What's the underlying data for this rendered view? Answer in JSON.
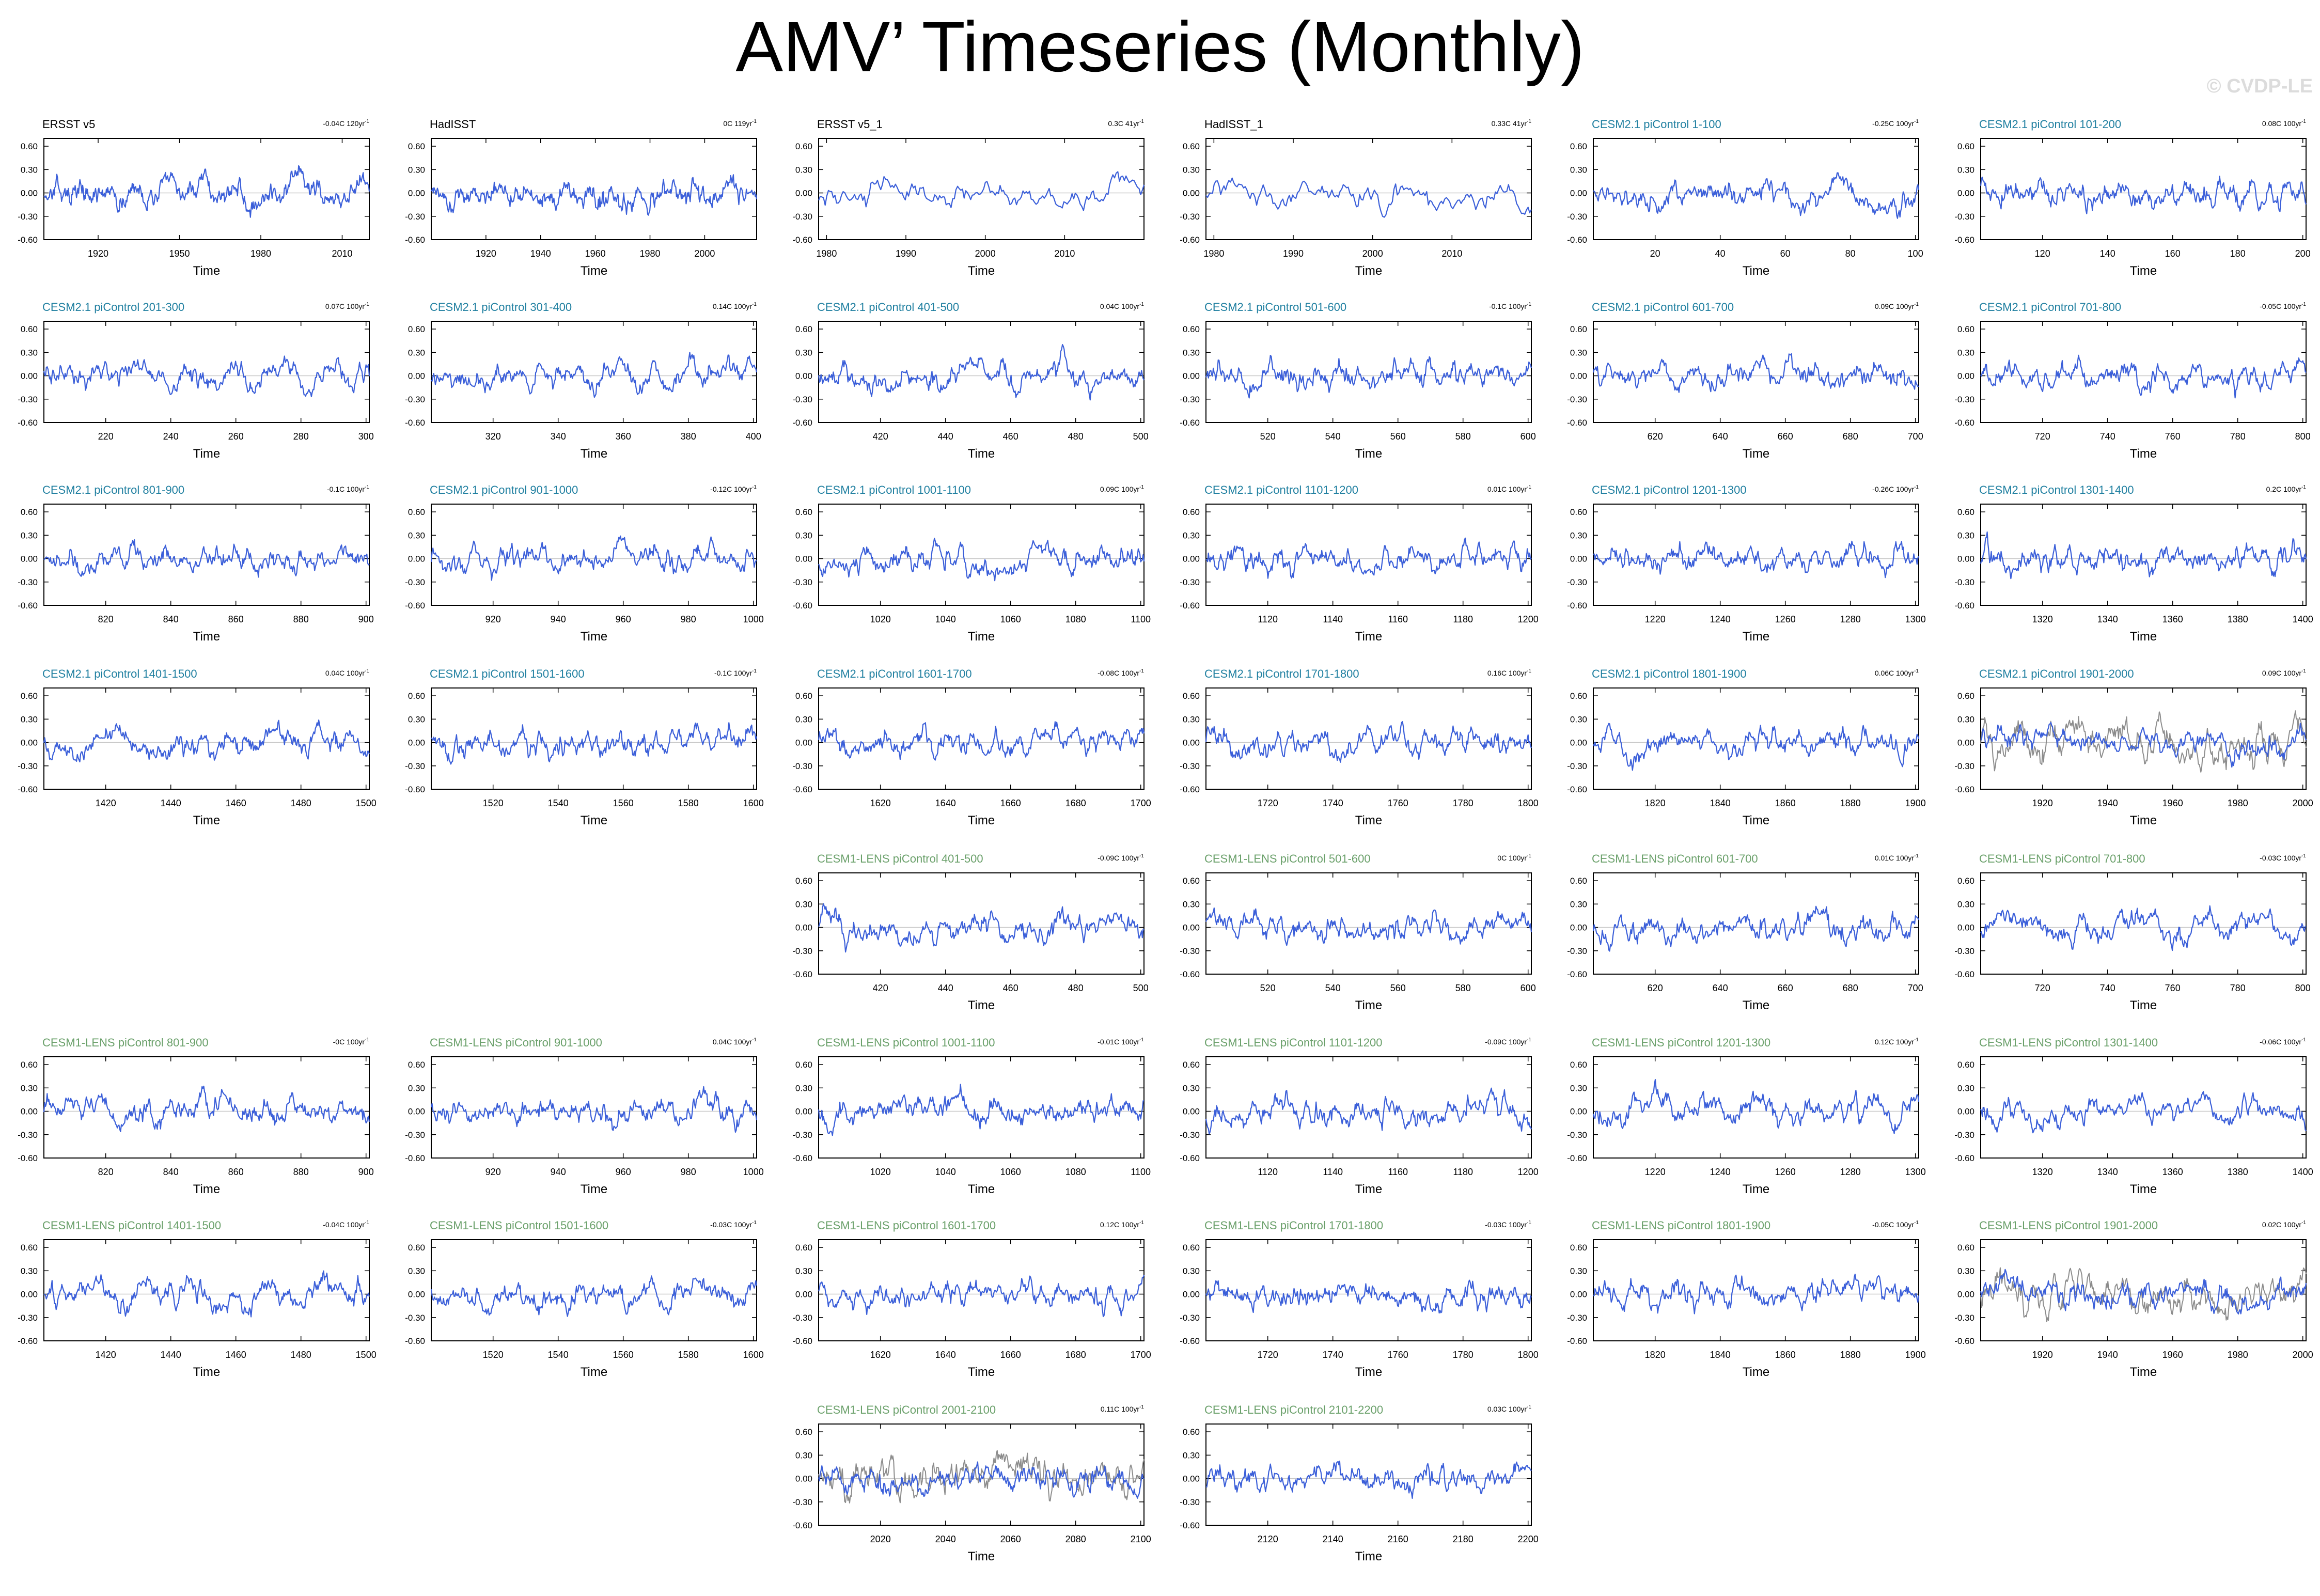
{
  "title": "AMV’ Timeseries (Monthly)",
  "credit": "© CVDP-LE",
  "colors": {
    "obs_title": "#000000",
    "cesm2_title": "#1f7fa0",
    "cesm1_title": "#6aa06a",
    "series": "#3b5fd9",
    "comparison": "#8c8c8c"
  },
  "chart_data": [
    {
      "type": "line",
      "title": "ERSST v5",
      "trend": "-0.04C 120yr",
      "xlabel": "Time",
      "xlim": [
        1900,
        2020
      ],
      "ylim": [
        -0.6,
        0.7
      ],
      "xticks": [
        1920,
        1950,
        1980,
        2010
      ],
      "yticks": [
        "0.60",
        "0.30",
        "0.00",
        "-0.30",
        "-0.60"
      ]
    },
    {
      "type": "line",
      "title": "HadISST",
      "trend": "0C 119yr",
      "xlabel": "Time",
      "xlim": [
        1900,
        2019
      ],
      "ylim": [
        -0.6,
        0.7
      ],
      "xticks": [
        1920,
        1940,
        1960,
        1980,
        2000
      ],
      "yticks": [
        "0.60",
        "0.30",
        "0.00",
        "-0.30",
        "-0.60"
      ]
    },
    {
      "type": "line",
      "title": "ERSST v5_1",
      "trend": "0.3C 41yr",
      "xlabel": "Time",
      "xlim": [
        1979,
        2020
      ],
      "ylim": [
        -0.6,
        0.7
      ],
      "xticks": [
        1980,
        1990,
        2000,
        2010
      ],
      "yticks": [
        "0.60",
        "0.30",
        "0.00",
        "-0.30",
        "-0.60"
      ]
    },
    {
      "type": "line",
      "title": "HadISST_1",
      "trend": "0.33C 41yr",
      "xlabel": "Time",
      "xlim": [
        1979,
        2020
      ],
      "ylim": [
        -0.6,
        0.7
      ],
      "xticks": [
        1980,
        1990,
        2000,
        2010
      ],
      "yticks": [
        "0.60",
        "0.30",
        "0.00",
        "-0.30",
        "-0.60"
      ]
    },
    {
      "type": "line",
      "title": "CESM2.1 piControl 1-100",
      "trend": "-0.25C 100yr",
      "xlabel": "Time",
      "xlim": [
        1,
        101
      ],
      "ylim": [
        -0.6,
        0.7
      ],
      "xticks": [
        20,
        40,
        60,
        80,
        100
      ],
      "yticks": [
        "0.60",
        "0.30",
        "0.00",
        "-0.30",
        "-0.60"
      ]
    },
    {
      "type": "line",
      "title": "CESM2.1 piControl 101-200",
      "trend": "0.08C 100yr",
      "xlabel": "Time",
      "xlim": [
        101,
        201
      ],
      "ylim": [
        -0.6,
        0.7
      ],
      "xticks": [
        120,
        140,
        160,
        180,
        200
      ],
      "yticks": [
        "0.60",
        "0.30",
        "0.00",
        "-0.30",
        "-0.60"
      ]
    },
    {
      "type": "line",
      "title": "CESM2.1 piControl 201-300",
      "trend": "0.07C 100yr",
      "xlabel": "Time",
      "xlim": [
        201,
        301
      ],
      "ylim": [
        -0.6,
        0.7
      ],
      "xticks": [
        220,
        240,
        260,
        280,
        300
      ],
      "yticks": [
        "0.60",
        "0.30",
        "0.00",
        "-0.30",
        "-0.60"
      ]
    },
    {
      "type": "line",
      "title": "CESM2.1 piControl 301-400",
      "trend": "0.14C 100yr",
      "xlabel": "Time",
      "xlim": [
        301,
        401
      ],
      "ylim": [
        -0.6,
        0.7
      ],
      "xticks": [
        320,
        340,
        360,
        380,
        400
      ],
      "yticks": [
        "0.60",
        "0.30",
        "0.00",
        "-0.30",
        "-0.60"
      ]
    },
    {
      "type": "line",
      "title": "CESM2.1 piControl 401-500",
      "trend": "0.04C 100yr",
      "xlabel": "Time",
      "xlim": [
        401,
        501
      ],
      "ylim": [
        -0.6,
        0.7
      ],
      "xticks": [
        420,
        440,
        460,
        480,
        500
      ],
      "yticks": [
        "0.60",
        "0.30",
        "0.00",
        "-0.30",
        "-0.60"
      ]
    },
    {
      "type": "line",
      "title": "CESM2.1 piControl 501-600",
      "trend": "-0.1C 100yr",
      "xlabel": "Time",
      "xlim": [
        501,
        601
      ],
      "ylim": [
        -0.6,
        0.7
      ],
      "xticks": [
        520,
        540,
        560,
        580,
        600
      ],
      "yticks": [
        "0.60",
        "0.30",
        "0.00",
        "-0.30",
        "-0.60"
      ]
    },
    {
      "type": "line",
      "title": "CESM2.1 piControl 601-700",
      "trend": "0.09C 100yr",
      "xlabel": "Time",
      "xlim": [
        601,
        701
      ],
      "ylim": [
        -0.6,
        0.7
      ],
      "xticks": [
        620,
        640,
        660,
        680,
        700
      ],
      "yticks": [
        "0.60",
        "0.30",
        "0.00",
        "-0.30",
        "-0.60"
      ]
    },
    {
      "type": "line",
      "title": "CESM2.1 piControl 701-800",
      "trend": "-0.05C 100yr",
      "xlabel": "Time",
      "xlim": [
        701,
        801
      ],
      "ylim": [
        -0.6,
        0.7
      ],
      "xticks": [
        720,
        740,
        760,
        780,
        800
      ],
      "yticks": [
        "0.60",
        "0.30",
        "0.00",
        "-0.30",
        "-0.60"
      ]
    },
    {
      "type": "line",
      "title": "CESM2.1 piControl 801-900",
      "trend": "-0.1C 100yr",
      "xlabel": "Time",
      "xlim": [
        801,
        901
      ],
      "ylim": [
        -0.6,
        0.7
      ],
      "xticks": [
        820,
        840,
        860,
        880,
        900
      ],
      "yticks": [
        "0.60",
        "0.30",
        "0.00",
        "-0.30",
        "-0.60"
      ]
    },
    {
      "type": "line",
      "title": "CESM2.1 piControl 901-1000",
      "trend": "-0.12C 100yr",
      "xlabel": "Time",
      "xlim": [
        901,
        1001
      ],
      "ylim": [
        -0.6,
        0.7
      ],
      "xticks": [
        920,
        940,
        960,
        980,
        1000
      ],
      "yticks": [
        "0.60",
        "0.30",
        "0.00",
        "-0.30",
        "-0.60"
      ]
    },
    {
      "type": "line",
      "title": "CESM2.1 piControl 1001-1100",
      "trend": "0.09C 100yr",
      "xlabel": "Time",
      "xlim": [
        1001,
        1101
      ],
      "ylim": [
        -0.6,
        0.7
      ],
      "xticks": [
        1020,
        1040,
        1060,
        1080,
        1100
      ],
      "yticks": [
        "0.60",
        "0.30",
        "0.00",
        "-0.30",
        "-0.60"
      ]
    },
    {
      "type": "line",
      "title": "CESM2.1 piControl 1101-1200",
      "trend": "0.01C 100yr",
      "xlabel": "Time",
      "xlim": [
        1101,
        1201
      ],
      "ylim": [
        -0.6,
        0.7
      ],
      "xticks": [
        1120,
        1140,
        1160,
        1180,
        1200
      ],
      "yticks": [
        "0.60",
        "0.30",
        "0.00",
        "-0.30",
        "-0.60"
      ]
    },
    {
      "type": "line",
      "title": "CESM2.1 piControl 1201-1300",
      "trend": "-0.26C 100yr",
      "xlabel": "Time",
      "xlim": [
        1201,
        1301
      ],
      "ylim": [
        -0.6,
        0.7
      ],
      "xticks": [
        1220,
        1240,
        1260,
        1280,
        1300
      ],
      "yticks": [
        "0.60",
        "0.30",
        "0.00",
        "-0.30",
        "-0.60"
      ]
    },
    {
      "type": "line",
      "title": "CESM2.1 piControl 1301-1400",
      "trend": "0.2C 100yr",
      "xlabel": "Time",
      "xlim": [
        1301,
        1401
      ],
      "ylim": [
        -0.6,
        0.7
      ],
      "xticks": [
        1320,
        1340,
        1360,
        1380,
        1400
      ],
      "yticks": [
        "0.60",
        "0.30",
        "0.00",
        "-0.30",
        "-0.60"
      ]
    },
    {
      "type": "line",
      "title": "CESM2.1 piControl 1401-1500",
      "trend": "0.04C 100yr",
      "xlabel": "Time",
      "xlim": [
        1401,
        1501
      ],
      "ylim": [
        -0.6,
        0.7
      ],
      "xticks": [
        1420,
        1440,
        1460,
        1480,
        1500
      ],
      "yticks": [
        "0.60",
        "0.30",
        "0.00",
        "-0.30",
        "-0.60"
      ]
    },
    {
      "type": "line",
      "title": "CESM2.1 piControl 1501-1600",
      "trend": "-0.1C 100yr",
      "xlabel": "Time",
      "xlim": [
        1501,
        1601
      ],
      "ylim": [
        -0.6,
        0.7
      ],
      "xticks": [
        1520,
        1540,
        1560,
        1580,
        1600
      ],
      "yticks": [
        "0.60",
        "0.30",
        "0.00",
        "-0.30",
        "-0.60"
      ]
    },
    {
      "type": "line",
      "title": "CESM2.1 piControl 1601-1700",
      "trend": "-0.08C 100yr",
      "xlabel": "Time",
      "xlim": [
        1601,
        1701
      ],
      "ylim": [
        -0.6,
        0.7
      ],
      "xticks": [
        1620,
        1640,
        1660,
        1680,
        1700
      ],
      "yticks": [
        "0.60",
        "0.30",
        "0.00",
        "-0.30",
        "-0.60"
      ]
    },
    {
      "type": "line",
      "title": "CESM2.1 piControl 1701-1800",
      "trend": "0.16C 100yr",
      "xlabel": "Time",
      "xlim": [
        1701,
        1801
      ],
      "ylim": [
        -0.6,
        0.7
      ],
      "xticks": [
        1720,
        1740,
        1760,
        1780,
        1800
      ],
      "yticks": [
        "0.60",
        "0.30",
        "0.00",
        "-0.30",
        "-0.60"
      ]
    },
    {
      "type": "line",
      "title": "CESM2.1 piControl 1801-1900",
      "trend": "0.06C 100yr",
      "xlabel": "Time",
      "xlim": [
        1801,
        1901
      ],
      "ylim": [
        -0.6,
        0.7
      ],
      "xticks": [
        1820,
        1840,
        1860,
        1880,
        1900
      ],
      "yticks": [
        "0.60",
        "0.30",
        "0.00",
        "-0.30",
        "-0.60"
      ]
    },
    {
      "type": "line",
      "title": "CESM2.1 piControl 1901-2000",
      "trend": "0.09C 100yr",
      "xlabel": "Time",
      "xlim": [
        1901,
        2001
      ],
      "ylim": [
        -0.6,
        0.7
      ],
      "xticks": [
        1920,
        1940,
        1960,
        1980,
        2000
      ],
      "yticks": [
        "0.60",
        "0.30",
        "0.00",
        "-0.30",
        "-0.60"
      ],
      "comparison": true
    },
    {
      "type": "line",
      "title": "CESM1-LENS piControl 401-500",
      "trend": "-0.09C 100yr",
      "xlabel": "Time",
      "xlim": [
        401,
        501
      ],
      "ylim": [
        -0.6,
        0.7
      ],
      "xticks": [
        420,
        440,
        460,
        480,
        500
      ],
      "yticks": [
        "0.60",
        "0.30",
        "0.00",
        "-0.30",
        "-0.60"
      ]
    },
    {
      "type": "line",
      "title": "CESM1-LENS piControl 501-600",
      "trend": "0C 100yr",
      "xlabel": "Time",
      "xlim": [
        501,
        601
      ],
      "ylim": [
        -0.6,
        0.7
      ],
      "xticks": [
        520,
        540,
        560,
        580,
        600
      ],
      "yticks": [
        "0.60",
        "0.30",
        "0.00",
        "-0.30",
        "-0.60"
      ]
    },
    {
      "type": "line",
      "title": "CESM1-LENS piControl 601-700",
      "trend": "0.01C 100yr",
      "xlabel": "Time",
      "xlim": [
        601,
        701
      ],
      "ylim": [
        -0.6,
        0.7
      ],
      "xticks": [
        620,
        640,
        660,
        680,
        700
      ],
      "yticks": [
        "0.60",
        "0.30",
        "0.00",
        "-0.30",
        "-0.60"
      ]
    },
    {
      "type": "line",
      "title": "CESM1-LENS piControl 701-800",
      "trend": "-0.03C 100yr",
      "xlabel": "Time",
      "xlim": [
        701,
        801
      ],
      "ylim": [
        -0.6,
        0.7
      ],
      "xticks": [
        720,
        740,
        760,
        780,
        800
      ],
      "yticks": [
        "0.60",
        "0.30",
        "0.00",
        "-0.30",
        "-0.60"
      ]
    },
    {
      "type": "line",
      "title": "CESM1-LENS piControl 801-900",
      "trend": "-0C 100yr",
      "xlabel": "Time",
      "xlim": [
        801,
        901
      ],
      "ylim": [
        -0.6,
        0.7
      ],
      "xticks": [
        820,
        840,
        860,
        880,
        900
      ],
      "yticks": [
        "0.60",
        "0.30",
        "0.00",
        "-0.30",
        "-0.60"
      ]
    },
    {
      "type": "line",
      "title": "CESM1-LENS piControl 901-1000",
      "trend": "0.04C 100yr",
      "xlabel": "Time",
      "xlim": [
        901,
        1001
      ],
      "ylim": [
        -0.6,
        0.7
      ],
      "xticks": [
        920,
        940,
        960,
        980,
        1000
      ],
      "yticks": [
        "0.60",
        "0.30",
        "0.00",
        "-0.30",
        "-0.60"
      ]
    },
    {
      "type": "line",
      "title": "CESM1-LENS piControl 1001-1100",
      "trend": "-0.01C 100yr",
      "xlabel": "Time",
      "xlim": [
        1001,
        1101
      ],
      "ylim": [
        -0.6,
        0.7
      ],
      "xticks": [
        1020,
        1040,
        1060,
        1080,
        1100
      ],
      "yticks": [
        "0.60",
        "0.30",
        "0.00",
        "-0.30",
        "-0.60"
      ]
    },
    {
      "type": "line",
      "title": "CESM1-LENS piControl 1101-1200",
      "trend": "-0.09C 100yr",
      "xlabel": "Time",
      "xlim": [
        1101,
        1201
      ],
      "ylim": [
        -0.6,
        0.7
      ],
      "xticks": [
        1120,
        1140,
        1160,
        1180,
        1200
      ],
      "yticks": [
        "0.60",
        "0.30",
        "0.00",
        "-0.30",
        "-0.60"
      ]
    },
    {
      "type": "line",
      "title": "CESM1-LENS piControl 1201-1300",
      "trend": "0.12C 100yr",
      "xlabel": "Time",
      "xlim": [
        1201,
        1301
      ],
      "ylim": [
        -0.6,
        0.7
      ],
      "xticks": [
        1220,
        1240,
        1260,
        1280,
        1300
      ],
      "yticks": [
        "0.60",
        "0.30",
        "0.00",
        "-0.30",
        "-0.60"
      ]
    },
    {
      "type": "line",
      "title": "CESM1-LENS piControl 1301-1400",
      "trend": "-0.06C 100yr",
      "xlabel": "Time",
      "xlim": [
        1301,
        1401
      ],
      "ylim": [
        -0.6,
        0.7
      ],
      "xticks": [
        1320,
        1340,
        1360,
        1380,
        1400
      ],
      "yticks": [
        "0.60",
        "0.30",
        "0.00",
        "-0.30",
        "-0.60"
      ]
    },
    {
      "type": "line",
      "title": "CESM1-LENS piControl 1401-1500",
      "trend": "-0.04C 100yr",
      "xlabel": "Time",
      "xlim": [
        1401,
        1501
      ],
      "ylim": [
        -0.6,
        0.7
      ],
      "xticks": [
        1420,
        1440,
        1460,
        1480,
        1500
      ],
      "yticks": [
        "0.60",
        "0.30",
        "0.00",
        "-0.30",
        "-0.60"
      ]
    },
    {
      "type": "line",
      "title": "CESM1-LENS piControl 1501-1600",
      "trend": "-0.03C 100yr",
      "xlabel": "Time",
      "xlim": [
        1501,
        1601
      ],
      "ylim": [
        -0.6,
        0.7
      ],
      "xticks": [
        1520,
        1540,
        1560,
        1580,
        1600
      ],
      "yticks": [
        "0.60",
        "0.30",
        "0.00",
        "-0.30",
        "-0.60"
      ]
    },
    {
      "type": "line",
      "title": "CESM1-LENS piControl 1601-1700",
      "trend": "0.12C 100yr",
      "xlabel": "Time",
      "xlim": [
        1601,
        1701
      ],
      "ylim": [
        -0.6,
        0.7
      ],
      "xticks": [
        1620,
        1640,
        1660,
        1680,
        1700
      ],
      "yticks": [
        "0.60",
        "0.30",
        "0.00",
        "-0.30",
        "-0.60"
      ]
    },
    {
      "type": "line",
      "title": "CESM1-LENS piControl 1701-1800",
      "trend": "-0.03C 100yr",
      "xlabel": "Time",
      "xlim": [
        1701,
        1801
      ],
      "ylim": [
        -0.6,
        0.7
      ],
      "xticks": [
        1720,
        1740,
        1760,
        1780,
        1800
      ],
      "yticks": [
        "0.60",
        "0.30",
        "0.00",
        "-0.30",
        "-0.60"
      ]
    },
    {
      "type": "line",
      "title": "CESM1-LENS piControl 1801-1900",
      "trend": "-0.05C 100yr",
      "xlabel": "Time",
      "xlim": [
        1801,
        1901
      ],
      "ylim": [
        -0.6,
        0.7
      ],
      "xticks": [
        1820,
        1840,
        1860,
        1880,
        1900
      ],
      "yticks": [
        "0.60",
        "0.30",
        "0.00",
        "-0.30",
        "-0.60"
      ]
    },
    {
      "type": "line",
      "title": "CESM1-LENS piControl 1901-2000",
      "trend": "0.02C 100yr",
      "xlabel": "Time",
      "xlim": [
        1901,
        2001
      ],
      "ylim": [
        -0.6,
        0.7
      ],
      "xticks": [
        1920,
        1940,
        1960,
        1980,
        2000
      ],
      "yticks": [
        "0.60",
        "0.30",
        "0.00",
        "-0.30",
        "-0.60"
      ],
      "comparison": true
    },
    {
      "type": "line",
      "title": "CESM1-LENS piControl 2001-2100",
      "trend": "0.11C 100yr",
      "xlabel": "Time",
      "xlim": [
        2001,
        2101
      ],
      "ylim": [
        -0.6,
        0.7
      ],
      "xticks": [
        2020,
        2040,
        2060,
        2080,
        2100
      ],
      "yticks": [
        "0.60",
        "0.30",
        "0.00",
        "-0.30",
        "-0.60"
      ],
      "comparison": true
    },
    {
      "type": "line",
      "title": "CESM1-LENS piControl 2101-2200",
      "trend": "0.03C 100yr",
      "xlabel": "Time",
      "xlim": [
        2101,
        2201
      ],
      "ylim": [
        -0.6,
        0.7
      ],
      "xticks": [
        2120,
        2140,
        2160,
        2180,
        2200
      ],
      "yticks": [
        "0.60",
        "0.30",
        "0.00",
        "-0.30",
        "-0.60"
      ]
    }
  ]
}
